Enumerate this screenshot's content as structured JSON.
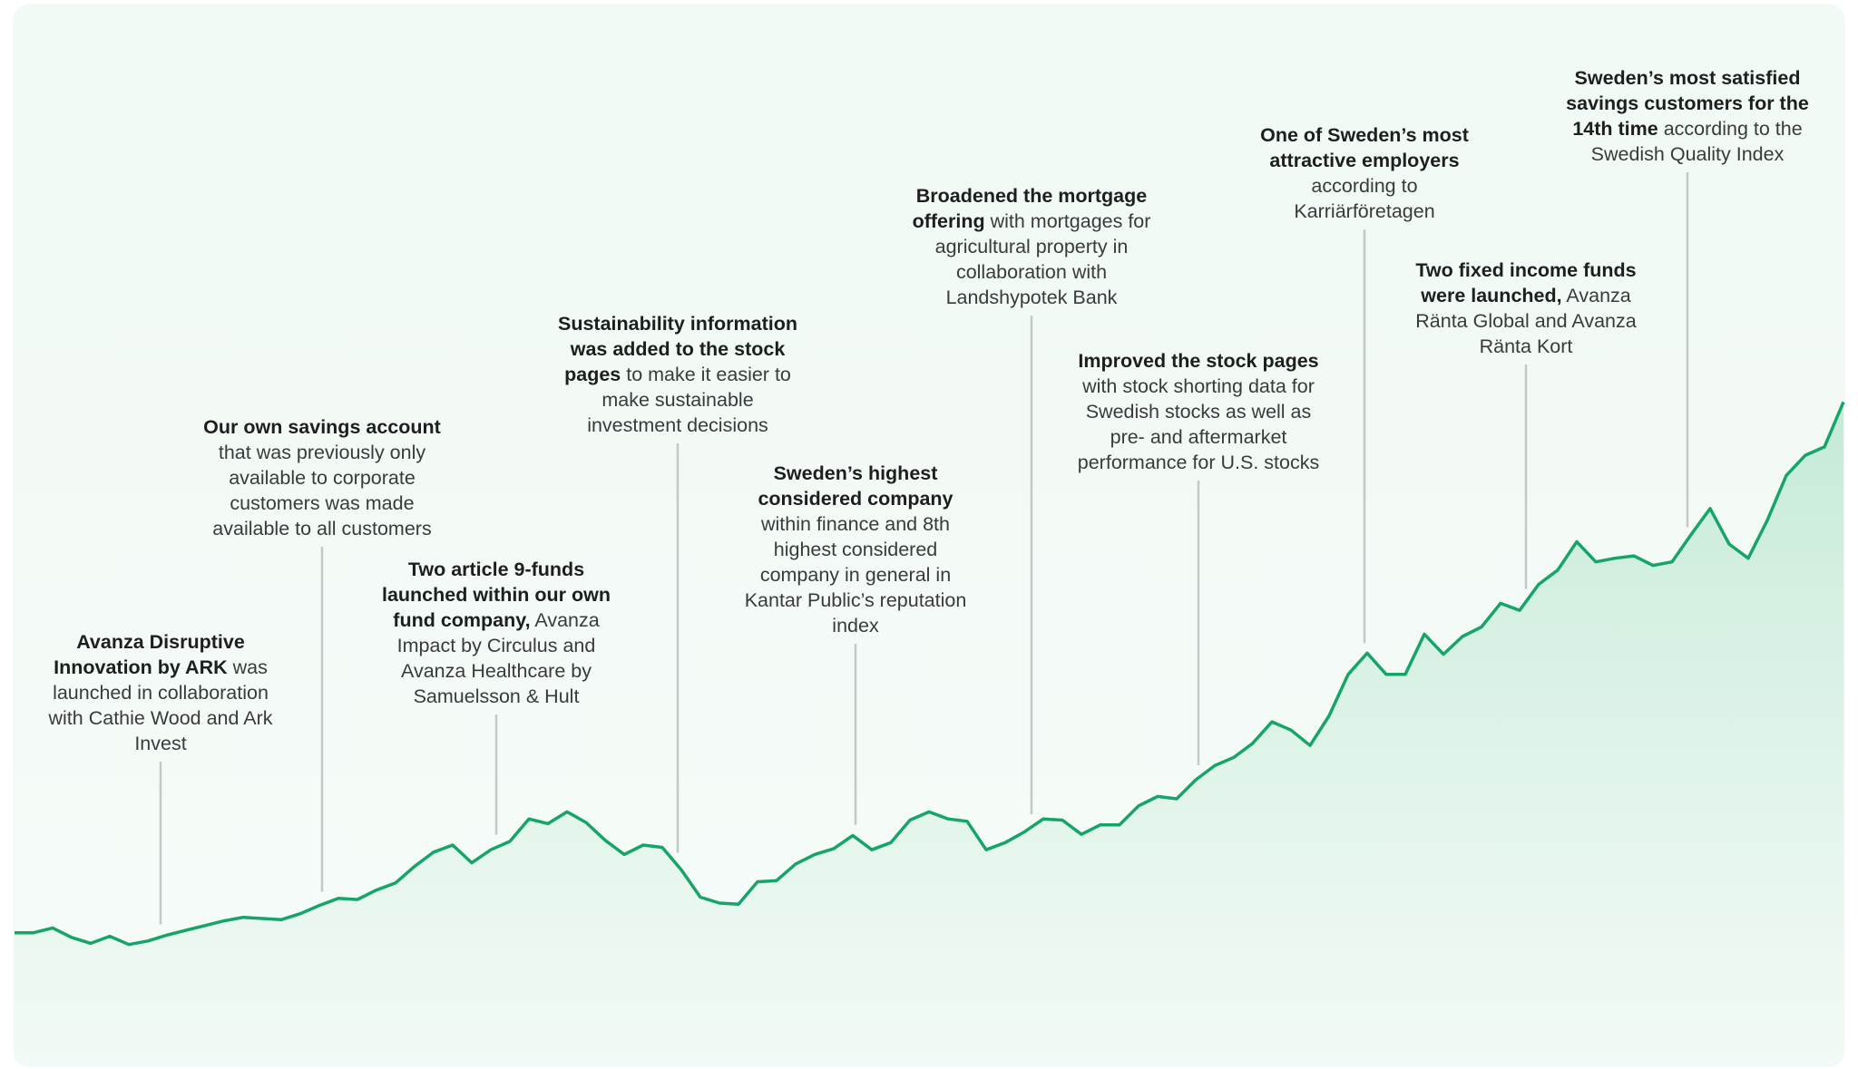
{
  "chart_data": {
    "type": "line",
    "color": "#17a468",
    "ylim": [
      0,
      600
    ],
    "values": [
      112,
      112,
      116,
      108,
      103,
      109,
      102,
      105,
      110,
      114,
      118,
      122,
      125,
      124,
      123,
      128,
      135,
      141,
      140,
      148,
      154,
      168,
      180,
      186,
      171,
      182,
      189,
      208,
      204,
      214,
      205,
      190,
      178,
      186,
      184,
      165,
      142,
      137,
      136,
      155,
      156,
      170,
      178,
      183,
      194,
      182,
      188,
      207,
      214,
      208,
      206,
      182,
      188,
      197,
      208,
      207,
      195,
      203,
      203,
      219,
      227,
      225,
      241,
      253,
      260,
      272,
      290,
      283,
      270,
      295,
      330,
      348,
      330,
      330,
      364,
      347,
      362,
      370,
      390,
      384,
      406,
      418,
      442,
      425,
      428,
      430,
      422,
      425,
      448,
      470,
      440,
      428,
      460,
      498,
      515,
      522,
      560
    ],
    "annotations": [
      {
        "bold": "Avanza Disruptive Innovation by ARK",
        "text": "was launched in collaboration with Cathie Wood and Ark Invest"
      },
      {
        "bold": "Our own savings account",
        "text": "that was previously only available to corporate customers was made available to all customers"
      },
      {
        "bold": "Two article 9-funds launched within our own fund company,",
        "text": "Avanza Impact by Circulus and Avanza Healthcare by Samuelsson & Hult"
      },
      {
        "bold": "Sustainability information was added to the stock pages",
        "text": "to make it easier to make sustainable investment decisions"
      },
      {
        "bold": "Sweden’s highest considered company",
        "text": "within finance and 8th highest considered company in general in Kantar Public’s reputation index"
      },
      {
        "bold": "Broadened the mortgage offering",
        "text": "with mortgages for agricultural property in collaboration with Landshypotek Bank"
      },
      {
        "bold": "Improved the stock pages",
        "text": "with stock shorting data for Swedish stocks as well as pre- and aftermarket performance for U.S. stocks"
      },
      {
        "bold": "One of Sweden’s most attractive employers",
        "text": "according to Karriärföretagen"
      },
      {
        "bold": "Two fixed income funds were launched,",
        "text": "Avanza Ränta Global and Avanza Ränta Kort"
      },
      {
        "bold": "Sweden’s most satisfied savings customers for the 14th time",
        "text": "according to the Swedish Quality Index"
      }
    ]
  }
}
